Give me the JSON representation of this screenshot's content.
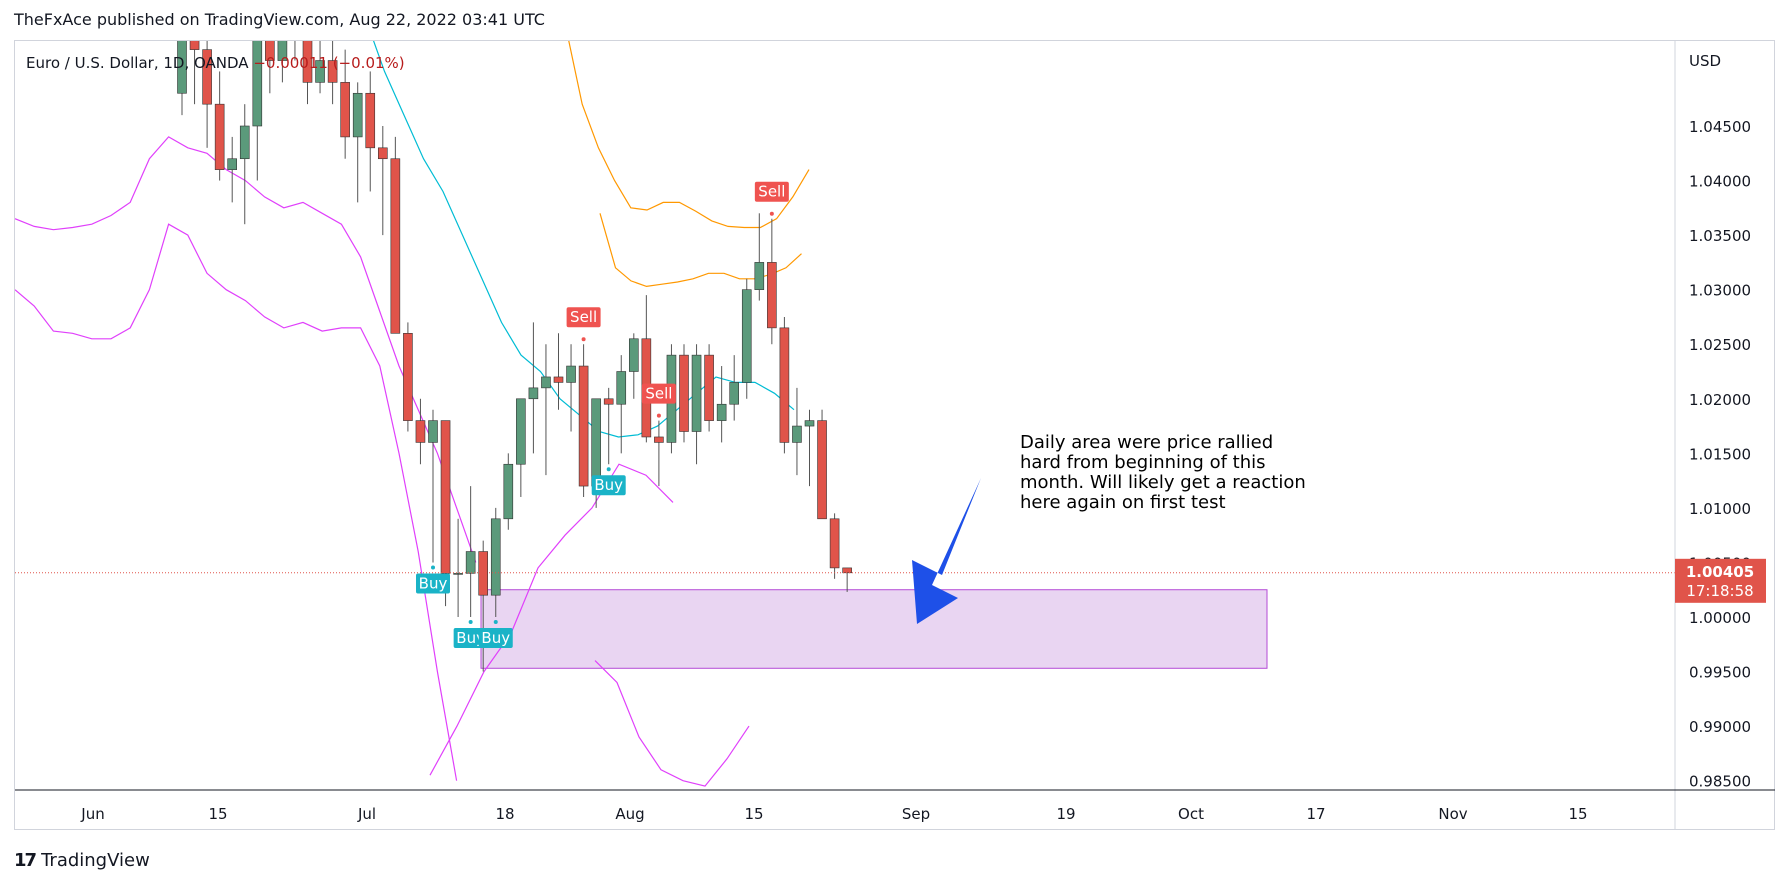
{
  "header": {
    "publisher_line": "TheFxAce published on TradingView.com, Aug 22, 2022 03:41 UTC"
  },
  "symbol": {
    "name": "Euro / U.S. Dollar, 1D, OANDA",
    "change": "−0.00011 (−0.01%)"
  },
  "footer": {
    "brand": "TradingView"
  },
  "annotation": {
    "text": "Daily area were price rallied hard from beginning of this month. Will likely get a reaction here again on first test"
  },
  "price_label": {
    "price": "1.00405",
    "countdown": "17:18:58"
  },
  "colors": {
    "up": "#5b9a7b",
    "down": "#e0544a",
    "bb_outer": "#e040fb",
    "bb_upper": "#ff9800",
    "mid": "#00bcd4",
    "zone": "#e9d5f2",
    "arrow": "#1e50e8",
    "buy": "#1ab3c7",
    "sell": "#ef5350",
    "axis_text": "#131722"
  },
  "chart_data": {
    "type": "candlestick",
    "title": "Euro / U.S. Dollar, 1D, OANDA",
    "currency": "USD",
    "y_axis": {
      "ticks": [
        "1.04500",
        "1.04000",
        "1.03500",
        "1.03000",
        "1.02500",
        "1.02000",
        "1.01500",
        "1.01000",
        "1.00500",
        "1.00000",
        "0.99500",
        "0.99000",
        "0.98500"
      ],
      "ylim": [
        0.984,
        1.053
      ]
    },
    "x_axis": {
      "ticks": [
        "Jun",
        "15",
        "Jul",
        "18",
        "Aug",
        "15",
        "Sep",
        "19",
        "Oct",
        "17",
        "Nov",
        "15"
      ]
    },
    "last_price": 1.00405,
    "candles": [
      {
        "o": 1.048,
        "h": 1.053,
        "l": 1.046,
        "c": 1.053
      },
      {
        "o": 1.053,
        "h": 1.054,
        "l": 1.047,
        "c": 1.052
      },
      {
        "o": 1.052,
        "h": 1.053,
        "l": 1.043,
        "c": 1.047
      },
      {
        "o": 1.047,
        "h": 1.05,
        "l": 1.04,
        "c": 1.041
      },
      {
        "o": 1.041,
        "h": 1.044,
        "l": 1.038,
        "c": 1.042
      },
      {
        "o": 1.042,
        "h": 1.047,
        "l": 1.036,
        "c": 1.045
      },
      {
        "o": 1.045,
        "h": 1.056,
        "l": 1.04,
        "c": 1.055
      },
      {
        "o": 1.055,
        "h": 1.059,
        "l": 1.048,
        "c": 1.051
      },
      {
        "o": 1.051,
        "h": 1.057,
        "l": 1.049,
        "c": 1.054
      },
      {
        "o": 1.054,
        "h": 1.059,
        "l": 1.051,
        "c": 1.055
      },
      {
        "o": 1.055,
        "h": 1.058,
        "l": 1.047,
        "c": 1.049
      },
      {
        "o": 1.049,
        "h": 1.056,
        "l": 1.048,
        "c": 1.051
      },
      {
        "o": 1.051,
        "h": 1.056,
        "l": 1.047,
        "c": 1.049
      },
      {
        "o": 1.049,
        "h": 1.052,
        "l": 1.042,
        "c": 1.044
      },
      {
        "o": 1.044,
        "h": 1.049,
        "l": 1.038,
        "c": 1.048
      },
      {
        "o": 1.048,
        "h": 1.05,
        "l": 1.039,
        "c": 1.043
      },
      {
        "o": 1.043,
        "h": 1.045,
        "l": 1.035,
        "c": 1.042
      },
      {
        "o": 1.042,
        "h": 1.044,
        "l": 1.026,
        "c": 1.026
      },
      {
        "o": 1.026,
        "h": 1.027,
        "l": 1.017,
        "c": 1.018
      },
      {
        "o": 1.018,
        "h": 1.02,
        "l": 1.014,
        "c": 1.016
      },
      {
        "o": 1.016,
        "h": 1.019,
        "l": 1.005,
        "c": 1.018
      },
      {
        "o": 1.018,
        "h": 1.018,
        "l": 1.001,
        "c": 1.004
      },
      {
        "o": 1.004,
        "h": 1.009,
        "l": 1.0,
        "c": 1.004
      },
      {
        "o": 1.004,
        "h": 1.012,
        "l": 1.0,
        "c": 1.006
      },
      {
        "o": 1.006,
        "h": 1.007,
        "l": 0.995,
        "c": 1.002
      },
      {
        "o": 1.002,
        "h": 1.01,
        "l": 1.0,
        "c": 1.009
      },
      {
        "o": 1.009,
        "h": 1.015,
        "l": 1.008,
        "c": 1.014
      },
      {
        "o": 1.014,
        "h": 1.02,
        "l": 1.011,
        "c": 1.02
      },
      {
        "o": 1.02,
        "h": 1.027,
        "l": 1.015,
        "c": 1.021
      },
      {
        "o": 1.021,
        "h": 1.025,
        "l": 1.013,
        "c": 1.022
      },
      {
        "o": 1.022,
        "h": 1.026,
        "l": 1.019,
        "c": 1.0215
      },
      {
        "o": 1.0215,
        "h": 1.025,
        "l": 1.017,
        "c": 1.023
      },
      {
        "o": 1.023,
        "h": 1.025,
        "l": 1.011,
        "c": 1.012
      },
      {
        "o": 1.012,
        "h": 1.02,
        "l": 1.01,
        "c": 1.02
      },
      {
        "o": 1.02,
        "h": 1.021,
        "l": 1.014,
        "c": 1.0195
      },
      {
        "o": 1.0195,
        "h": 1.024,
        "l": 1.015,
        "c": 1.0225
      },
      {
        "o": 1.0225,
        "h": 1.026,
        "l": 1.02,
        "c": 1.0255
      },
      {
        "o": 1.0255,
        "h": 1.0295,
        "l": 1.016,
        "c": 1.0165
      },
      {
        "o": 1.0165,
        "h": 1.018,
        "l": 1.012,
        "c": 1.016
      },
      {
        "o": 1.016,
        "h": 1.025,
        "l": 1.015,
        "c": 1.024
      },
      {
        "o": 1.024,
        "h": 1.025,
        "l": 1.016,
        "c": 1.017
      },
      {
        "o": 1.017,
        "h": 1.025,
        "l": 1.014,
        "c": 1.024
      },
      {
        "o": 1.024,
        "h": 1.025,
        "l": 1.017,
        "c": 1.018
      },
      {
        "o": 1.018,
        "h": 1.023,
        "l": 1.016,
        "c": 1.0195
      },
      {
        "o": 1.0195,
        "h": 1.024,
        "l": 1.018,
        "c": 1.0215
      },
      {
        "o": 1.0215,
        "h": 1.031,
        "l": 1.02,
        "c": 1.03
      },
      {
        "o": 1.03,
        "h": 1.037,
        "l": 1.029,
        "c": 1.0325
      },
      {
        "o": 1.0325,
        "h": 1.0365,
        "l": 1.025,
        "c": 1.0265
      },
      {
        "o": 1.0265,
        "h": 1.0275,
        "l": 1.015,
        "c": 1.016
      },
      {
        "o": 1.016,
        "h": 1.021,
        "l": 1.013,
        "c": 1.0175
      },
      {
        "o": 1.0175,
        "h": 1.019,
        "l": 1.012,
        "c": 1.018
      },
      {
        "o": 1.018,
        "h": 1.019,
        "l": 1.009,
        "c": 1.009
      },
      {
        "o": 1.009,
        "h": 1.0095,
        "l": 1.0035,
        "c": 1.0045
      },
      {
        "o": 1.0045,
        "h": 1.0045,
        "l": 1.0023,
        "c": 1.00405
      }
    ],
    "indicators": {
      "bb_outer_upper": [
        1.0365,
        1.0358,
        1.0355,
        1.0357,
        1.036,
        1.0368,
        1.038,
        1.042,
        1.044,
        1.043,
        1.0425,
        1.041,
        1.04,
        1.0385,
        1.0375,
        1.038,
        1.037,
        1.036,
        1.033,
        1.028,
        1.023,
        1.019,
        1.015,
        1.01,
        1.005
      ],
      "bb_outer_lower": [
        1.03,
        1.0285,
        1.0262,
        1.026,
        1.0255,
        1.0255,
        1.0265,
        1.03,
        1.036,
        1.035,
        1.0315,
        1.03,
        1.029,
        1.0275,
        1.0265,
        1.027,
        1.0262,
        1.0265,
        1.0265,
        1.023,
        1.015,
        1.006,
        0.995,
        0.985
      ],
      "ma_mid": [
        1.055,
        1.05,
        1.046,
        1.042,
        1.039,
        1.035,
        1.031,
        1.027,
        1.024,
        1.0225,
        1.02,
        1.0185,
        1.017,
        1.0165,
        1.0167,
        1.0175,
        1.019,
        1.0205,
        1.022,
        1.0215,
        1.0215,
        1.0205,
        1.019
      ],
      "bb_orange_upper": [
        1.054,
        1.047,
        1.043,
        1.04,
        1.0375,
        1.0373,
        1.038,
        1.038,
        1.0372,
        1.0363,
        1.0358,
        1.0357,
        1.0357,
        1.0365,
        1.0385,
        1.041
      ],
      "bb_orange_lower": [
        1.037,
        1.032,
        1.0308,
        1.0303,
        1.0305,
        1.0307,
        1.031,
        1.0315,
        1.0315,
        1.031,
        1.031,
        1.0314,
        1.032,
        1.0333
      ]
    },
    "signals": [
      {
        "label": "Buy",
        "candle": 20,
        "side": "buy"
      },
      {
        "label": "Buy",
        "candle": 23,
        "side": "buy"
      },
      {
        "label": "Buy",
        "candle": 25,
        "side": "buy"
      },
      {
        "label": "Buy",
        "candle": 34,
        "side": "buy"
      },
      {
        "label": "Sell",
        "candle": 32,
        "side": "sell"
      },
      {
        "label": "Sell",
        "candle": 38,
        "side": "sell"
      },
      {
        "label": "Sell",
        "candle": 47,
        "side": "sell"
      }
    ],
    "demand_zone": {
      "top": 1.0025,
      "bottom": 0.9953
    }
  }
}
